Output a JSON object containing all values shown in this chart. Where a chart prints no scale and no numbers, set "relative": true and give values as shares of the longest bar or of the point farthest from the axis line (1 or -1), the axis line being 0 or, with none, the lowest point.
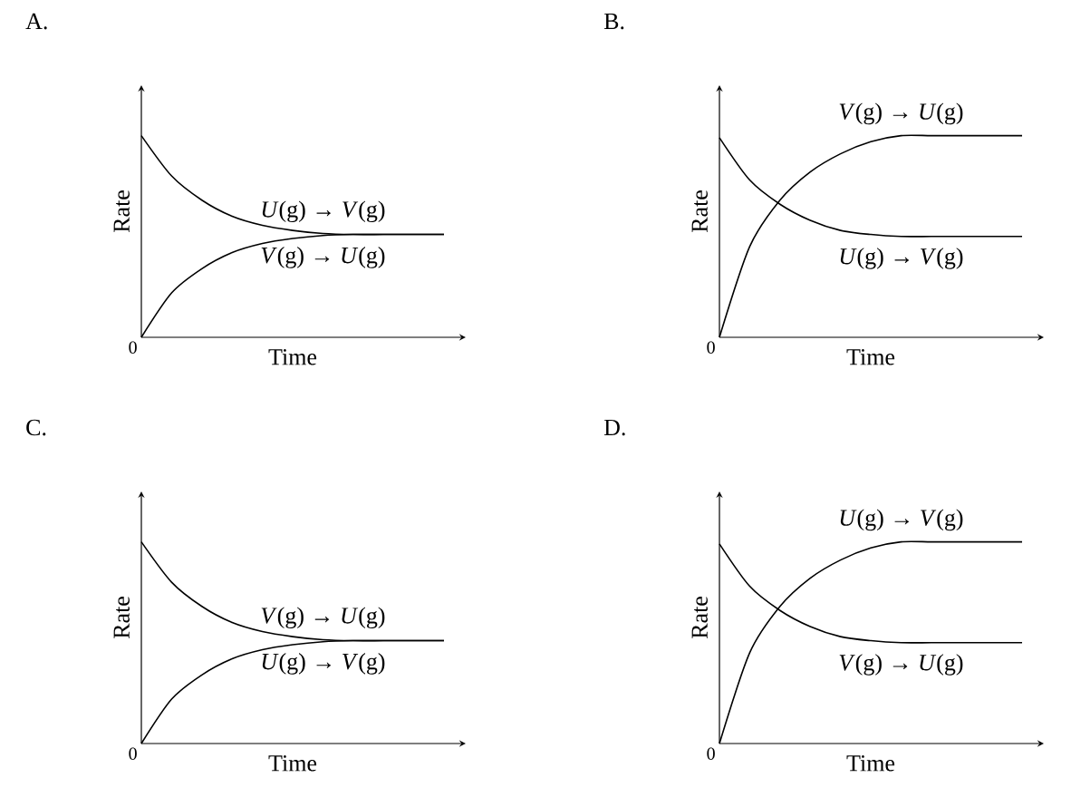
{
  "chart_data": [
    {
      "type": "line",
      "title": "A.",
      "xlabel": "Time",
      "ylabel": "Rate",
      "relative": true,
      "annotations": [
        "0"
      ],
      "categories": [
        null,
        null,
        null,
        null,
        null,
        null,
        null,
        null,
        null,
        null,
        null
      ],
      "series": [
        {
          "name": "*U*(g) → *V*(g)",
          "color": "#000000",
          "values": [
            1,
            0.8,
            0.68,
            0.6,
            0.555,
            0.53,
            0.515,
            0.51,
            0.51,
            0.51,
            0.51
          ]
        },
        {
          "name": "*V*(g) → *U*(g)",
          "color": "#000000",
          "values": [
            0,
            0.22,
            0.34,
            0.42,
            0.465,
            0.49,
            0.505,
            0.51,
            0.51,
            0.51,
            0.51
          ]
        }
      ]
    },
    {
      "type": "line",
      "title": "B.",
      "xlabel": "Time",
      "ylabel": "Rate",
      "relative": true,
      "annotations": [
        "0"
      ],
      "categories": [
        null,
        null,
        null,
        null,
        null,
        null,
        null,
        null,
        null,
        null,
        null
      ],
      "series": [
        {
          "name": "*V*(g) → *U*(g)",
          "color": "#000000",
          "values": [
            0,
            0.45,
            0.68,
            0.82,
            0.91,
            0.97,
            1,
            1,
            1,
            1,
            1
          ]
        },
        {
          "name": "*U*(g) → *V*(g)",
          "color": "#000000",
          "values": [
            0.99,
            0.78,
            0.66,
            0.58,
            0.53,
            0.51,
            0.5,
            0.5,
            0.5,
            0.5,
            0.5
          ]
        }
      ]
    },
    {
      "type": "line",
      "title": "C.",
      "xlabel": "Time",
      "ylabel": "Rate",
      "relative": true,
      "annotations": [
        "0"
      ],
      "categories": [
        null,
        null,
        null,
        null,
        null,
        null,
        null,
        null,
        null,
        null,
        null
      ],
      "series": [
        {
          "name": "*V*(g) → *U*(g)",
          "color": "#000000",
          "values": [
            1,
            0.8,
            0.68,
            0.6,
            0.555,
            0.53,
            0.515,
            0.51,
            0.51,
            0.51,
            0.51
          ]
        },
        {
          "name": "*U*(g) → *V*(g)",
          "color": "#000000",
          "values": [
            0,
            0.22,
            0.34,
            0.42,
            0.465,
            0.49,
            0.505,
            0.51,
            0.51,
            0.51,
            0.51
          ]
        }
      ]
    },
    {
      "type": "line",
      "title": "D.",
      "xlabel": "Time",
      "ylabel": "Rate",
      "relative": true,
      "annotations": [
        "0"
      ],
      "categories": [
        null,
        null,
        null,
        null,
        null,
        null,
        null,
        null,
        null,
        null,
        null
      ],
      "series": [
        {
          "name": "*U*(g) → *V*(g)",
          "color": "#000000",
          "values": [
            0,
            0.45,
            0.68,
            0.82,
            0.91,
            0.97,
            1,
            1,
            1,
            1,
            1
          ]
        },
        {
          "name": "*V*(g) → *U*(g)",
          "color": "#000000",
          "values": [
            0.99,
            0.78,
            0.66,
            0.58,
            0.53,
            0.51,
            0.5,
            0.5,
            0.5,
            0.5,
            0.5
          ]
        }
      ]
    }
  ]
}
